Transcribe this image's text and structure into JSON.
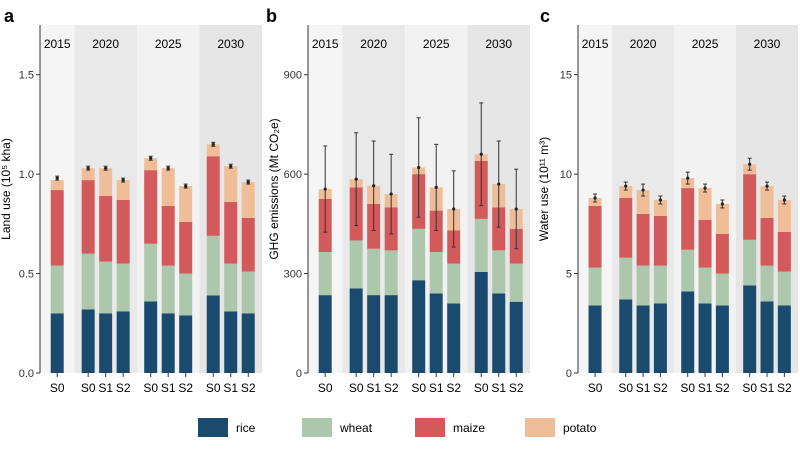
{
  "legend": [
    {
      "key": "rice",
      "label": "rice",
      "color": "#1a4a6e"
    },
    {
      "key": "wheat",
      "label": "wheat",
      "color": "#adc7ad"
    },
    {
      "key": "maize",
      "label": "maize",
      "color": "#d35a5a"
    },
    {
      "key": "potato",
      "label": "potato",
      "color": "#efbe98"
    }
  ],
  "chart_data": [
    {
      "type": "bar",
      "stacked": true,
      "panel": "a",
      "ylabel": "Land use (10⁵ kha)",
      "ylim": [
        0,
        1.75
      ],
      "yticks": [
        0,
        0.5,
        1.0,
        1.5
      ],
      "ytick_labels": [
        "0.0",
        "0.5",
        "1.0",
        "1.5"
      ],
      "groups": [
        {
          "year": "2015",
          "bars": [
            {
              "label": "S0",
              "values": {
                "rice": 0.3,
                "wheat": 0.24,
                "maize": 0.38,
                "potato": 0.05
              },
              "total": 0.98,
              "err": 0.01
            }
          ]
        },
        {
          "year": "2020",
          "bars": [
            {
              "label": "S0",
              "values": {
                "rice": 0.32,
                "wheat": 0.28,
                "maize": 0.37,
                "potato": 0.06
              },
              "total": 1.03,
              "err": 0.01
            },
            {
              "label": "S1",
              "values": {
                "rice": 0.3,
                "wheat": 0.26,
                "maize": 0.33,
                "potato": 0.14
              },
              "total": 1.03,
              "err": 0.01
            },
            {
              "label": "S2",
              "values": {
                "rice": 0.31,
                "wheat": 0.24,
                "maize": 0.32,
                "potato": 0.1
              },
              "total": 0.97,
              "err": 0.01
            }
          ]
        },
        {
          "year": "2025",
          "bars": [
            {
              "label": "S0",
              "values": {
                "rice": 0.36,
                "wheat": 0.29,
                "maize": 0.37,
                "potato": 0.06
              },
              "total": 1.08,
              "err": 0.01
            },
            {
              "label": "S1",
              "values": {
                "rice": 0.3,
                "wheat": 0.24,
                "maize": 0.3,
                "potato": 0.19
              },
              "total": 1.03,
              "err": 0.01
            },
            {
              "label": "S2",
              "values": {
                "rice": 0.29,
                "wheat": 0.21,
                "maize": 0.26,
                "potato": 0.18
              },
              "total": 0.94,
              "err": 0.01
            }
          ]
        },
        {
          "year": "2030",
          "bars": [
            {
              "label": "S0",
              "values": {
                "rice": 0.39,
                "wheat": 0.3,
                "maize": 0.4,
                "potato": 0.06
              },
              "total": 1.15,
              "err": 0.01
            },
            {
              "label": "S1",
              "values": {
                "rice": 0.31,
                "wheat": 0.24,
                "maize": 0.31,
                "potato": 0.18
              },
              "total": 1.04,
              "err": 0.01
            },
            {
              "label": "S2",
              "values": {
                "rice": 0.3,
                "wheat": 0.21,
                "maize": 0.27,
                "potato": 0.18
              },
              "total": 0.96,
              "err": 0.01
            }
          ]
        }
      ]
    },
    {
      "type": "bar",
      "stacked": true,
      "panel": "b",
      "ylabel": "GHG emissions (Mt CO₂e)",
      "ylim": [
        0,
        1050
      ],
      "yticks": [
        0,
        300,
        600,
        900
      ],
      "ytick_labels": [
        "0",
        "300",
        "600",
        "900"
      ],
      "groups": [
        {
          "year": "2015",
          "bars": [
            {
              "label": "S0",
              "values": {
                "rice": 235,
                "wheat": 130,
                "maize": 160,
                "potato": 30
              },
              "total": 555,
              "err": 130
            }
          ]
        },
        {
          "year": "2020",
          "bars": [
            {
              "label": "S0",
              "values": {
                "rice": 255,
                "wheat": 145,
                "maize": 160,
                "potato": 25
              },
              "total": 585,
              "err": 140
            },
            {
              "label": "S1",
              "values": {
                "rice": 235,
                "wheat": 140,
                "maize": 135,
                "potato": 55
              },
              "total": 565,
              "err": 135
            },
            {
              "label": "S2",
              "values": {
                "rice": 235,
                "wheat": 135,
                "maize": 130,
                "potato": 40
              },
              "total": 540,
              "err": 120
            }
          ]
        },
        {
          "year": "2025",
          "bars": [
            {
              "label": "S0",
              "values": {
                "rice": 280,
                "wheat": 155,
                "maize": 165,
                "potato": 20
              },
              "total": 620,
              "err": 150
            },
            {
              "label": "S1",
              "values": {
                "rice": 240,
                "wheat": 125,
                "maize": 125,
                "potato": 70
              },
              "total": 560,
              "err": 130
            },
            {
              "label": "S2",
              "values": {
                "rice": 210,
                "wheat": 120,
                "maize": 100,
                "potato": 65
              },
              "total": 495,
              "err": 115
            }
          ]
        },
        {
          "year": "2030",
          "bars": [
            {
              "label": "S0",
              "values": {
                "rice": 305,
                "wheat": 160,
                "maize": 175,
                "potato": 20
              },
              "total": 660,
              "err": 155
            },
            {
              "label": "S1",
              "values": {
                "rice": 240,
                "wheat": 130,
                "maize": 130,
                "potato": 70
              },
              "total": 570,
              "err": 130
            },
            {
              "label": "S2",
              "values": {
                "rice": 215,
                "wheat": 115,
                "maize": 105,
                "potato": 60
              },
              "total": 495,
              "err": 120
            }
          ]
        }
      ]
    },
    {
      "type": "bar",
      "stacked": true,
      "panel": "c",
      "ylabel": "Water use (10¹¹ m³)",
      "ylim": [
        0,
        17.5
      ],
      "yticks": [
        0,
        5,
        10,
        15
      ],
      "ytick_labels": [
        "0",
        "5",
        "10",
        "15"
      ],
      "groups": [
        {
          "year": "2015",
          "bars": [
            {
              "label": "S0",
              "values": {
                "rice": 3.4,
                "wheat": 1.9,
                "maize": 3.1,
                "potato": 0.4
              },
              "total": 8.8,
              "err": 0.2
            }
          ]
        },
        {
          "year": "2020",
          "bars": [
            {
              "label": "S0",
              "values": {
                "rice": 3.7,
                "wheat": 2.1,
                "maize": 3.0,
                "potato": 0.6
              },
              "total": 9.4,
              "err": 0.2
            },
            {
              "label": "S1",
              "values": {
                "rice": 3.4,
                "wheat": 2.0,
                "maize": 2.6,
                "potato": 1.2
              },
              "total": 9.2,
              "err": 0.3
            },
            {
              "label": "S2",
              "values": {
                "rice": 3.5,
                "wheat": 1.9,
                "maize": 2.5,
                "potato": 0.8
              },
              "total": 8.7,
              "err": 0.2
            }
          ]
        },
        {
          "year": "2025",
          "bars": [
            {
              "label": "S0",
              "values": {
                "rice": 4.1,
                "wheat": 2.1,
                "maize": 3.1,
                "potato": 0.5
              },
              "total": 9.8,
              "err": 0.3
            },
            {
              "label": "S1",
              "values": {
                "rice": 3.5,
                "wheat": 1.8,
                "maize": 2.4,
                "potato": 1.6
              },
              "total": 9.3,
              "err": 0.2
            },
            {
              "label": "S2",
              "values": {
                "rice": 3.4,
                "wheat": 1.6,
                "maize": 2.0,
                "potato": 1.5
              },
              "total": 8.5,
              "err": 0.2
            }
          ]
        },
        {
          "year": "2030",
          "bars": [
            {
              "label": "S0",
              "values": {
                "rice": 4.4,
                "wheat": 2.3,
                "maize": 3.3,
                "potato": 0.5
              },
              "total": 10.5,
              "err": 0.3
            },
            {
              "label": "S1",
              "values": {
                "rice": 3.6,
                "wheat": 1.8,
                "maize": 2.4,
                "potato": 1.6
              },
              "total": 9.4,
              "err": 0.2
            },
            {
              "label": "S2",
              "values": {
                "rice": 3.4,
                "wheat": 1.7,
                "maize": 2.0,
                "potato": 1.6
              },
              "total": 8.7,
              "err": 0.2
            }
          ]
        }
      ]
    }
  ]
}
